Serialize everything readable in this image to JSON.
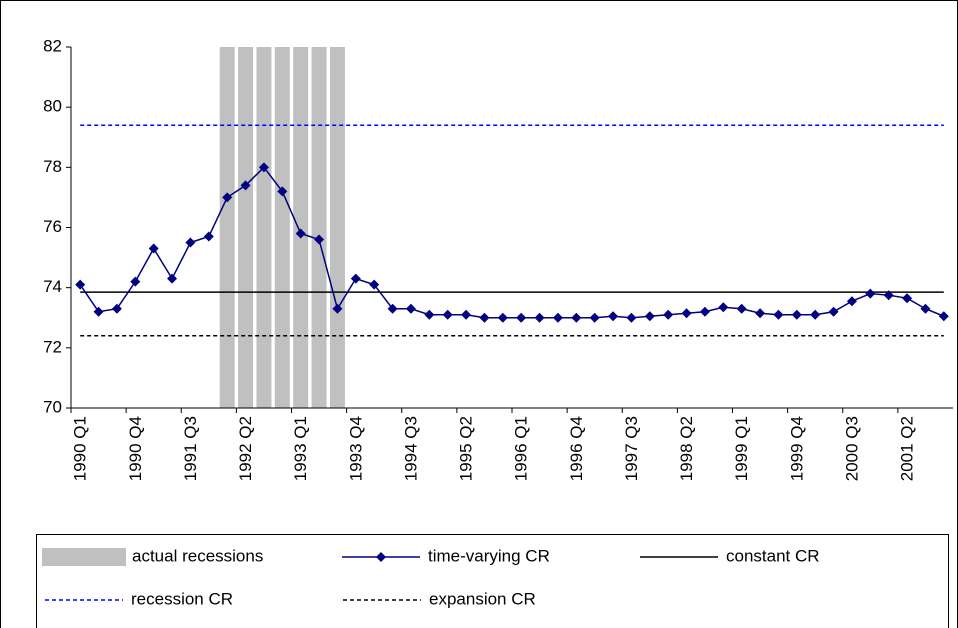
{
  "chart_data": {
    "type": "line",
    "categories": [
      "1990 Q1",
      null,
      null,
      "1990 Q4",
      null,
      null,
      "1991 Q3",
      null,
      null,
      "1992 Q2",
      null,
      null,
      "1993 Q1",
      null,
      null,
      "1993 Q4",
      null,
      null,
      "1994 Q3",
      null,
      null,
      "1995 Q2",
      null,
      null,
      "1996 Q1",
      null,
      null,
      "1996 Q4",
      null,
      null,
      "1997 Q3",
      null,
      null,
      "1998 Q2",
      null,
      null,
      "1999 Q1",
      null,
      null,
      "1999 Q4",
      null,
      null,
      "2000 Q3",
      null,
      null,
      "2001 Q2",
      null,
      null
    ],
    "ylim": [
      70,
      82
    ],
    "yticks": [
      70,
      72,
      74,
      76,
      78,
      80,
      82
    ],
    "series": [
      {
        "name": "actual recessions",
        "kind": "bar",
        "color": "#c0c0c0",
        "values": [
          null,
          null,
          null,
          null,
          null,
          null,
          null,
          null,
          82,
          82,
          82,
          82,
          82,
          82,
          82,
          null,
          null,
          null,
          null,
          null,
          null,
          null,
          null,
          null,
          null,
          null,
          null,
          null,
          null,
          null,
          null,
          null,
          null,
          null,
          null,
          null,
          null,
          null,
          null,
          null,
          null,
          null,
          null,
          null,
          null,
          null,
          null,
          null
        ]
      },
      {
        "name": "time-varying CR",
        "kind": "line",
        "marker": "diamond",
        "color": "#000080",
        "values": [
          74.1,
          73.2,
          73.3,
          74.2,
          75.3,
          74.3,
          75.5,
          75.7,
          77.0,
          77.4,
          78.0,
          77.2,
          75.8,
          75.6,
          73.3,
          74.3,
          74.1,
          73.3,
          73.3,
          73.1,
          73.1,
          73.1,
          73.0,
          73.0,
          73.0,
          73.0,
          73.0,
          73.0,
          73.0,
          73.05,
          73.0,
          73.05,
          73.1,
          73.15,
          73.2,
          73.35,
          73.3,
          73.15,
          73.1,
          73.1,
          73.1,
          73.2,
          73.55,
          73.8,
          73.75,
          73.65,
          73.3,
          73.05
        ]
      },
      {
        "name": "constant CR",
        "kind": "hline",
        "dash": "solid",
        "color": "#000000",
        "value": 73.85
      },
      {
        "name": "recession CR",
        "kind": "hline",
        "dash": "dashed",
        "color": "#0000ff",
        "value": 79.4
      },
      {
        "name": "expansion CR",
        "kind": "hline",
        "dash": "dashed",
        "color": "#000000",
        "value": 72.4
      }
    ]
  }
}
